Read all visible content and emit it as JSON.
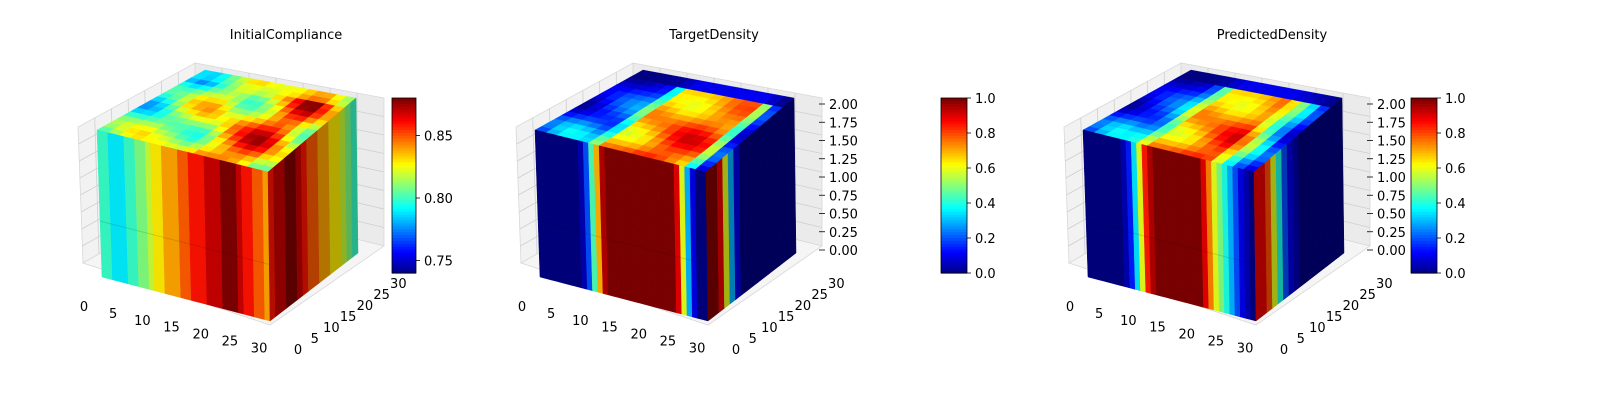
{
  "chart_data": [
    {
      "type": "voxel-3d",
      "title": "InitialCompliance",
      "colormap": "jet",
      "colorbar": {
        "range": [
          0.74,
          0.88
        ],
        "ticks": [
          0.75,
          0.8,
          0.85
        ],
        "tick_labels": [
          "0.75",
          "0.80",
          "0.85"
        ]
      },
      "x_ticks": [
        "0",
        "5",
        "10",
        "15",
        "20",
        "25",
        "30"
      ],
      "y_ticks": [
        "0",
        "5",
        "10",
        "15",
        "20",
        "25",
        "30"
      ],
      "z_ticks": [],
      "z_range": [
        0,
        2
      ],
      "front_profile": [
        0.8,
        0.8,
        0.79,
        0.79,
        0.79,
        0.8,
        0.8,
        0.81,
        0.81,
        0.82,
        0.83,
        0.83,
        0.84,
        0.84,
        0.84,
        0.85,
        0.85,
        0.86,
        0.86,
        0.86,
        0.87,
        0.87,
        0.87,
        0.88,
        0.88,
        0.88,
        0.87,
        0.86,
        0.86,
        0.85,
        0.85,
        0.84
      ],
      "side_profile": [
        0.86,
        0.87,
        0.87,
        0.88,
        0.88,
        0.87,
        0.86,
        0.85,
        0.85,
        0.84,
        0.84,
        0.83,
        0.83,
        0.82,
        0.81,
        0.8
      ]
    },
    {
      "type": "voxel-3d",
      "title": "TargetDensity",
      "colormap": "jet",
      "colorbar": {
        "range": [
          0,
          1
        ],
        "ticks": [
          0,
          0.2,
          0.4,
          0.6,
          0.8,
          1.0
        ],
        "tick_labels": [
          "0.0",
          "0.2",
          "0.4",
          "0.6",
          "0.8",
          "1.0"
        ]
      },
      "x_ticks": [
        "0",
        "5",
        "10",
        "15",
        "20",
        "25",
        "30"
      ],
      "y_ticks": [
        "0",
        "5",
        "10",
        "15",
        "20",
        "25",
        "30"
      ],
      "z_ticks": [
        "0.00",
        "0.25",
        "0.50",
        "0.75",
        "1.00",
        "1.25",
        "1.50",
        "1.75",
        "2.00"
      ],
      "z_range": [
        0,
        2
      ],
      "front_profile": [
        0,
        0,
        0,
        0,
        0,
        0,
        0,
        0,
        0.05,
        0.2,
        0.45,
        0.7,
        0.95,
        1,
        1,
        1,
        1,
        1,
        1,
        1,
        1,
        1,
        1,
        1,
        1,
        1,
        0.9,
        0.6,
        0.3,
        0.1,
        0,
        0
      ],
      "side_profile": [
        1,
        1,
        0.9,
        0.6,
        0.3,
        0.1,
        0,
        0,
        0,
        0,
        0,
        0,
        0,
        0,
        0,
        0
      ]
    },
    {
      "type": "voxel-3d",
      "title": "PredictedDensity",
      "colormap": "jet",
      "colorbar": {
        "range": [
          0,
          1
        ],
        "ticks": [
          0,
          0.2,
          0.4,
          0.6,
          0.8,
          1.0
        ],
        "tick_labels": [
          "0.0",
          "0.2",
          "0.4",
          "0.6",
          "0.8",
          "1.0"
        ]
      },
      "x_ticks": [
        "0",
        "5",
        "10",
        "15",
        "20",
        "25",
        "30"
      ],
      "y_ticks": [
        "0",
        "5",
        "10",
        "15",
        "20",
        "25",
        "30"
      ],
      "z_ticks": [
        "0.00",
        "0.25",
        "0.50",
        "0.75",
        "1.00",
        "1.25",
        "1.50",
        "1.75",
        "2.00"
      ],
      "z_range": [
        0,
        2
      ],
      "front_profile": [
        0,
        0,
        0,
        0,
        0,
        0,
        0,
        0.05,
        0.15,
        0.35,
        0.6,
        0.85,
        0.95,
        1,
        1,
        1,
        1,
        1,
        1,
        1,
        1,
        1,
        0.9,
        0.75,
        0.6,
        0.5,
        0.4,
        0.3,
        0.2,
        0.1,
        0.05,
        0
      ],
      "side_profile": [
        0.9,
        0.9,
        0.8,
        0.6,
        0.4,
        0.2,
        0.1,
        0.05,
        0,
        0,
        0,
        0,
        0,
        0,
        0,
        0
      ]
    }
  ]
}
